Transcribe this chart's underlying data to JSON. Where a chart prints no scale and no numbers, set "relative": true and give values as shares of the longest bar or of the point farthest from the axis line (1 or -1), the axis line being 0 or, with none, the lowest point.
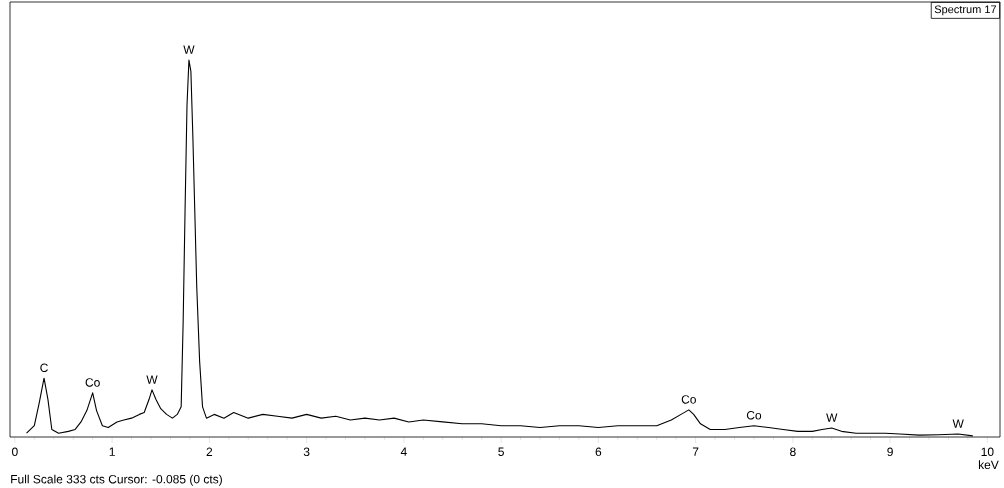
{
  "chart_data": {
    "type": "line",
    "title": "Spectrum 17",
    "xlabel": "keV",
    "relative": true,
    "color": "#000000",
    "grid": false,
    "marker": "none",
    "xlim": [
      -0.05,
      10.13
    ],
    "xticks": [
      0,
      1,
      2,
      3,
      4,
      5,
      6,
      7,
      8,
      9,
      10
    ],
    "x": [
      0.12,
      0.2,
      0.25,
      0.3,
      0.34,
      0.38,
      0.45,
      0.55,
      0.62,
      0.68,
      0.74,
      0.8,
      0.84,
      0.9,
      0.96,
      1.05,
      1.12,
      1.2,
      1.28,
      1.33,
      1.38,
      1.41,
      1.45,
      1.5,
      1.56,
      1.62,
      1.67,
      1.71,
      1.73,
      1.75,
      1.77,
      1.79,
      1.81,
      1.83,
      1.85,
      1.87,
      1.9,
      1.93,
      1.97,
      2.05,
      2.15,
      2.25,
      2.4,
      2.55,
      2.7,
      2.85,
      3.0,
      3.15,
      3.3,
      3.45,
      3.6,
      3.75,
      3.9,
      4.05,
      4.2,
      4.4,
      4.6,
      4.8,
      5.0,
      5.2,
      5.4,
      5.6,
      5.8,
      6.0,
      6.2,
      6.4,
      6.6,
      6.75,
      6.85,
      6.93,
      6.98,
      7.05,
      7.15,
      7.3,
      7.45,
      7.6,
      7.75,
      7.9,
      8.05,
      8.2,
      8.3,
      8.4,
      8.5,
      8.65,
      8.8,
      8.95,
      9.1,
      9.3,
      9.5,
      9.7,
      9.85
    ],
    "values": [
      0.01,
      0.03,
      0.09,
      0.156,
      0.1,
      0.02,
      0.01,
      0.015,
      0.02,
      0.04,
      0.07,
      0.117,
      0.07,
      0.03,
      0.025,
      0.04,
      0.045,
      0.05,
      0.06,
      0.065,
      0.1,
      0.125,
      0.1,
      0.075,
      0.06,
      0.05,
      0.06,
      0.08,
      0.3,
      0.6,
      0.88,
      1.0,
      0.97,
      0.8,
      0.6,
      0.4,
      0.2,
      0.08,
      0.05,
      0.06,
      0.05,
      0.065,
      0.05,
      0.06,
      0.055,
      0.05,
      0.06,
      0.05,
      0.055,
      0.045,
      0.05,
      0.045,
      0.05,
      0.04,
      0.045,
      0.04,
      0.035,
      0.035,
      0.03,
      0.03,
      0.025,
      0.03,
      0.03,
      0.025,
      0.03,
      0.03,
      0.03,
      0.045,
      0.06,
      0.072,
      0.06,
      0.035,
      0.02,
      0.02,
      0.025,
      0.03,
      0.025,
      0.02,
      0.015,
      0.015,
      0.02,
      0.024,
      0.015,
      0.01,
      0.01,
      0.01,
      0.008,
      0.005,
      0.006,
      0.008,
      0.003
    ],
    "annotations": [
      {
        "text": "C",
        "x": 0.3,
        "y": 0.156
      },
      {
        "text": "Co",
        "x": 0.8,
        "y": 0.117
      },
      {
        "text": "W",
        "x": 1.41,
        "y": 0.125
      },
      {
        "text": "W",
        "x": 1.79,
        "y": 1.0
      },
      {
        "text": "Co",
        "x": 6.93,
        "y": 0.072
      },
      {
        "text": "Co",
        "x": 7.6,
        "y": 0.03
      },
      {
        "text": "W",
        "x": 8.4,
        "y": 0.024
      },
      {
        "text": "W",
        "x": 9.7,
        "y": 0.008
      },
      "Full Scale 333 cts Cursor: -0.085  (0 cts)"
    ]
  }
}
